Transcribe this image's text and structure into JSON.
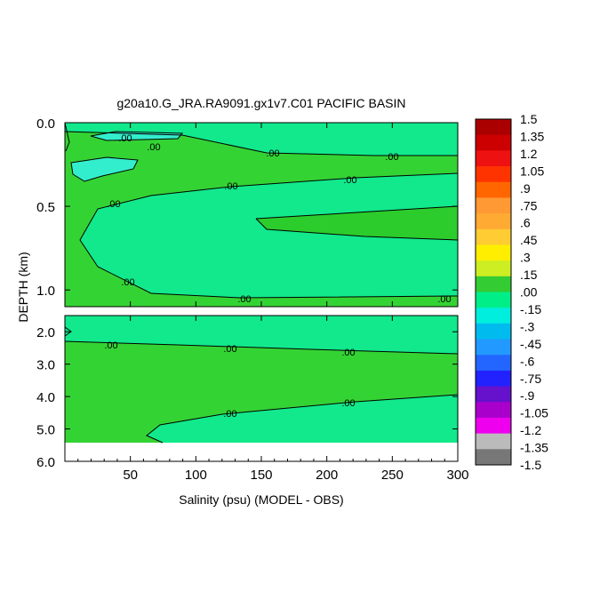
{
  "chart_data": {
    "type": "heatmap",
    "title": "g20a10.G_JRA.RA9091.gx1v7.C01 PACIFIC BASIN",
    "xlabel": "Salinity (psu) (MODEL - OBS)",
    "ylabel": "DEPTH (km)",
    "x_range": [
      0,
      300
    ],
    "x_ticks": [
      50,
      100,
      150,
      200,
      250,
      300
    ],
    "x_tick_labels": [
      "50",
      "100",
      "150",
      "200",
      "250",
      "300"
    ],
    "upper_panel": {
      "y_range": [
        0.0,
        1.1
      ],
      "y_ticks": [
        0.0,
        0.5,
        1.0
      ],
      "y_tick_labels": [
        "0.0",
        "0.5",
        "1.0"
      ]
    },
    "lower_panel": {
      "y_range": [
        1.5,
        6.0
      ],
      "y_ticks": [
        2.0,
        3.0,
        4.0,
        5.0,
        6.0
      ],
      "y_tick_labels": [
        "2.0",
        "3.0",
        "4.0",
        "5.0",
        "6.0"
      ],
      "missing_below_depth": 5.4
    },
    "contour_labels": [
      ".00",
      ".00",
      ".00",
      ".00",
      ".00",
      ".00",
      ".00",
      ".00",
      ".00",
      ".00",
      ".00",
      ".00",
      ".00"
    ],
    "colorbar": {
      "labels": [
        "1.5",
        "1.35",
        "1.2",
        "1.05",
        ".9",
        ".75",
        ".6",
        ".45",
        ".3",
        ".15",
        ".00",
        "-.15",
        "-.3",
        "-.45",
        "-.6",
        "-.75",
        "-.9",
        "-1.05",
        "-1.2",
        "-1.35",
        "-1.5"
      ],
      "colors": [
        "#aa0000",
        "#cc0000",
        "#ee1111",
        "#ff3300",
        "#ff6600",
        "#ff9933",
        "#ffaa33",
        "#ffcc33",
        "#ffee00",
        "#ccee22",
        "#33cc33",
        "#00ee88",
        "#00eedd",
        "#00bbee",
        "#2299ff",
        "#2266ff",
        "#2222ff",
        "#6611cc",
        "#aa00cc",
        "#ee00ee",
        "#bbbbbb",
        "#777777"
      ]
    },
    "region_colors": {
      "near_zero_positive": "#34d334",
      "near_zero_negative": "#11e98c",
      "slightly_negative": "#33eecc",
      "positive_core": "#2ccc2c",
      "missing": "#ffffff"
    }
  }
}
